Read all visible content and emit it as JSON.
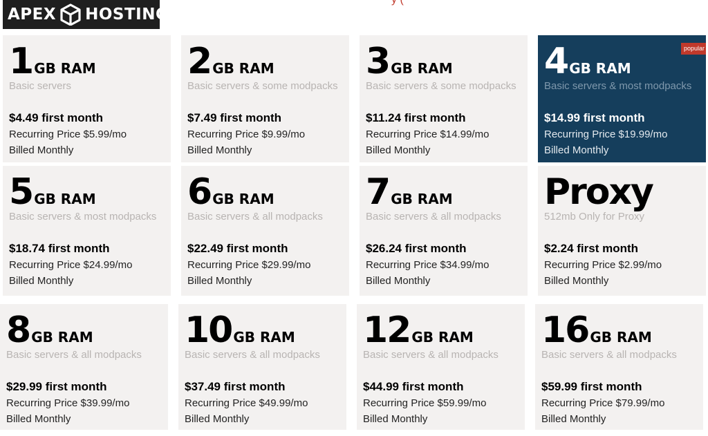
{
  "brand": {
    "name_left": "APEX",
    "name_right": "HOSTING",
    "icon": "cube-icon"
  },
  "header": {
    "partial_text": "y ("
  },
  "plans": [
    {
      "size": "1",
      "unit": "GB RAM",
      "desc": "Basic servers",
      "first": "$4.49 first month",
      "recurring": "Recurring Price $5.99/mo",
      "billed": "Billed Monthly"
    },
    {
      "size": "2",
      "unit": "GB RAM",
      "desc": "Basic servers & some modpacks",
      "first": "$7.49 first month",
      "recurring": "Recurring Price $9.99/mo",
      "billed": "Billed Monthly"
    },
    {
      "size": "3",
      "unit": "GB RAM",
      "desc": "Basic servers & some modpacks",
      "first": "$11.24 first month",
      "recurring": "Recurring Price $14.99/mo",
      "billed": "Billed Monthly"
    },
    {
      "size": "4",
      "unit": "GB RAM",
      "desc": "Basic servers & most modpacks",
      "first": "$14.99 first month",
      "recurring": "Recurring Price $19.99/mo",
      "billed": "Billed Monthly",
      "badge": "popular"
    },
    {
      "size": "5",
      "unit": "GB RAM",
      "desc": "Basic servers & most modpacks",
      "first": "$18.74 first month",
      "recurring": "Recurring Price $24.99/mo",
      "billed": "Billed Monthly"
    },
    {
      "size": "6",
      "unit": "GB RAM",
      "desc": "Basic servers & all modpacks",
      "first": "$22.49 first month",
      "recurring": "Recurring Price $29.99/mo",
      "billed": "Billed Monthly"
    },
    {
      "size": "7",
      "unit": "GB RAM",
      "desc": "Basic servers & all modpacks",
      "first": "$26.24 first month",
      "recurring": "Recurring Price $34.99/mo",
      "billed": "Billed Monthly"
    },
    {
      "size": "Proxy",
      "unit": "",
      "desc": "512mb Only for Proxy",
      "first": "$2.24 first month",
      "recurring": "Recurring Price $2.99/mo",
      "billed": "Billed Monthly"
    },
    {
      "size": "8",
      "unit": "GB RAM",
      "desc": "Basic servers & all modpacks",
      "first": "$29.99 first month",
      "recurring": "Recurring Price $39.99/mo",
      "billed": "Billed Monthly"
    },
    {
      "size": "10",
      "unit": "GB RAM",
      "desc": "Basic servers & all modpacks",
      "first": "$37.49 first month",
      "recurring": "Recurring Price $49.99/mo",
      "billed": "Billed Monthly"
    },
    {
      "size": "12",
      "unit": "GB RAM",
      "desc": "Basic servers & all modpacks",
      "first": "$44.99 first month",
      "recurring": "Recurring Price $59.99/mo",
      "billed": "Billed Monthly"
    },
    {
      "size": "16",
      "unit": "GB RAM",
      "desc": "Basic servers & all modpacks",
      "first": "$59.99 first month",
      "recurring": "Recurring Price $79.99/mo",
      "billed": "Billed Monthly"
    }
  ],
  "colors": {
    "card_bg": "#f3f1f0",
    "featured_bg": "#153e5c",
    "badge_bg": "#c0392b",
    "logo_bg": "#1f1f1f"
  }
}
